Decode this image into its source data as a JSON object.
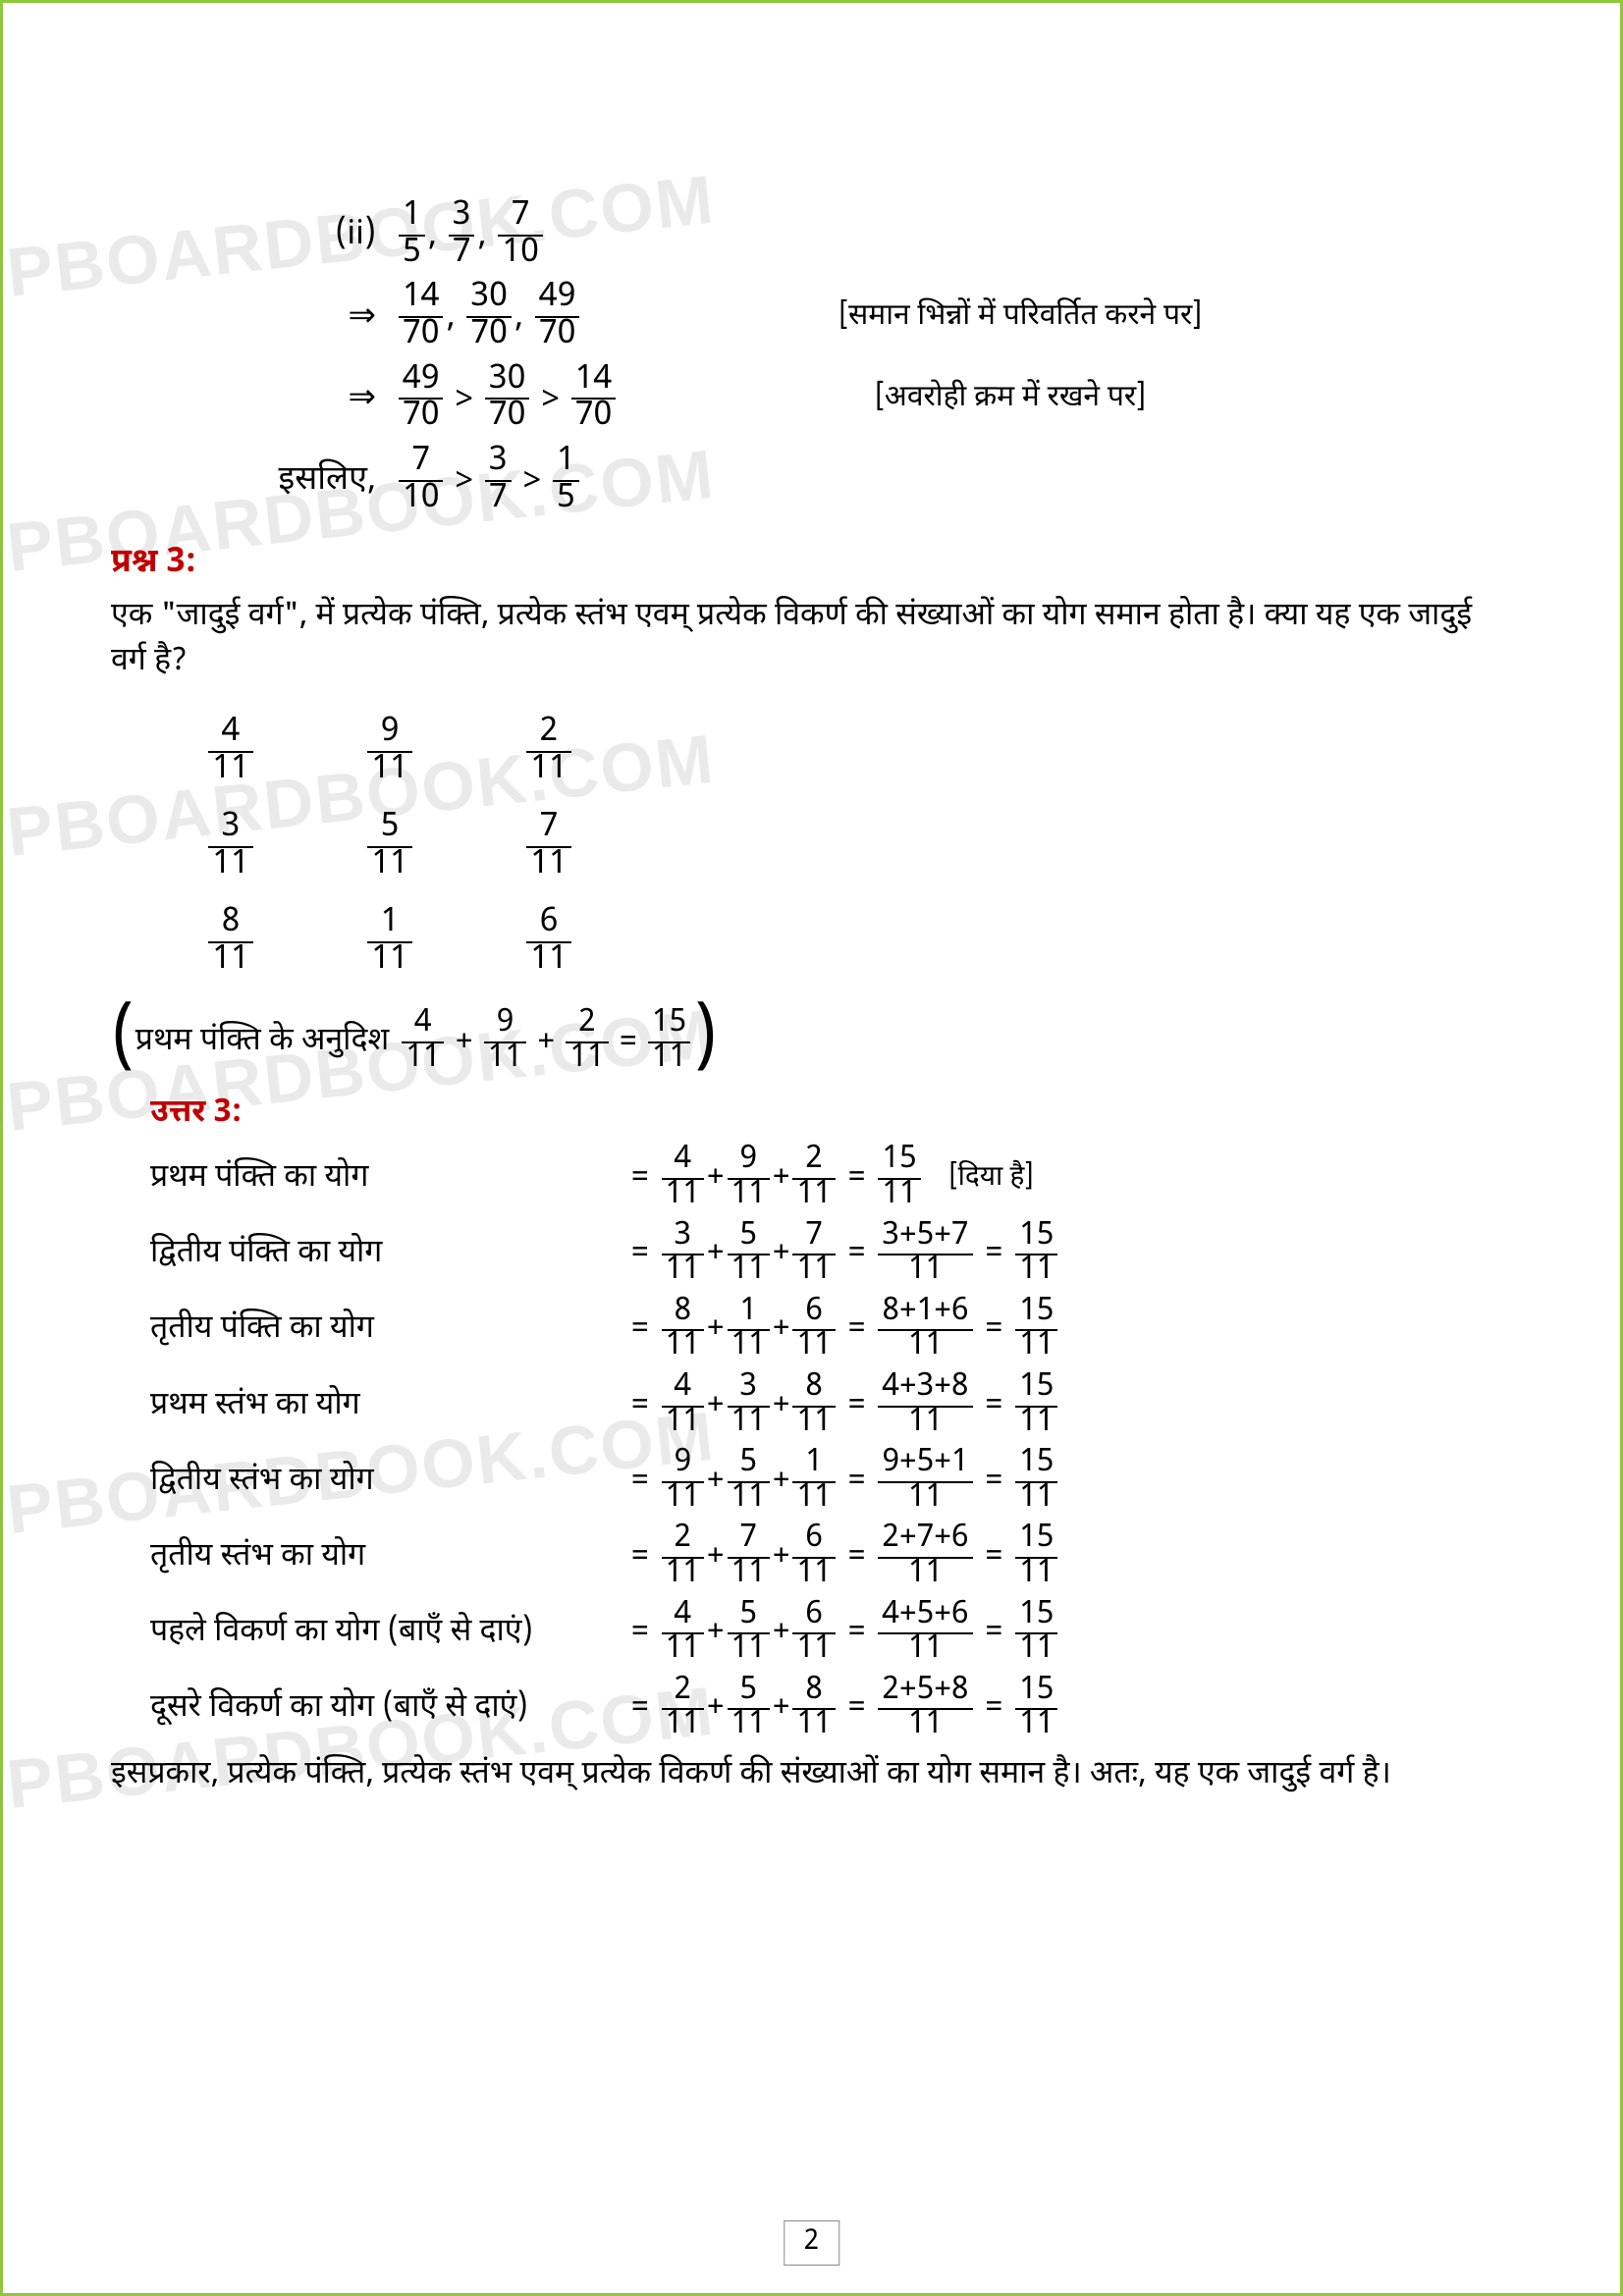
{
  "watermark_text": "UPBOARDBOOK.COM",
  "page_number": "2",
  "section_ii": {
    "marker": "(ii)",
    "original": [
      [
        "1",
        "5"
      ],
      [
        "3",
        "7"
      ],
      [
        "7",
        "10"
      ]
    ],
    "converted": [
      [
        "14",
        "70"
      ],
      [
        "30",
        "70"
      ],
      [
        "49",
        "70"
      ]
    ],
    "note_convert": "[समान भिन्नों में परिवर्तित करने पर]",
    "descending": [
      [
        "49",
        "70"
      ],
      [
        "30",
        "70"
      ],
      [
        "14",
        "70"
      ]
    ],
    "note_desc": "[अवरोही क्रम में रखने पर]",
    "therefore": "इसलिए,",
    "arrow": "⇒",
    "gt": ">",
    "comma": ",",
    "final": [
      [
        "7",
        "10"
      ],
      [
        "3",
        "7"
      ],
      [
        "1",
        "5"
      ]
    ]
  },
  "question3": {
    "title": "प्रश्न 3:",
    "text": "एक \"जादुई वर्ग\", में प्रत्येक पंक्ति, प्रत्येक स्तंभ एवम् प्रत्येक विकर्ण की संख्याओं का योग समान होता है। क्या यह एक जादुई वर्ग है?",
    "square": [
      [
        [
          "4",
          "11"
        ],
        [
          "9",
          "11"
        ],
        [
          "2",
          "11"
        ]
      ],
      [
        [
          "3",
          "11"
        ],
        [
          "5",
          "11"
        ],
        [
          "7",
          "11"
        ]
      ],
      [
        [
          "8",
          "11"
        ],
        [
          "1",
          "11"
        ],
        [
          "6",
          "11"
        ]
      ]
    ],
    "hint_prefix": "प्रथम पंक्ति के अनुदिश",
    "hint_fracs": [
      [
        "4",
        "11"
      ],
      [
        "9",
        "11"
      ],
      [
        "2",
        "11"
      ]
    ],
    "hint_result": [
      "15",
      "11"
    ],
    "plus": "+",
    "equals": "="
  },
  "answer3": {
    "title": "उत्तर 3:",
    "given": "[दिया है]",
    "rows": [
      {
        "label": "प्रथम पंक्ति का योग",
        "f": [
          [
            "4",
            "11"
          ],
          [
            "9",
            "11"
          ],
          [
            "2",
            "11"
          ]
        ],
        "mid": null,
        "res": [
          "15",
          "11"
        ],
        "given": true
      },
      {
        "label": "द्वितीय पंक्ति का योग",
        "f": [
          [
            "3",
            "11"
          ],
          [
            "5",
            "11"
          ],
          [
            "7",
            "11"
          ]
        ],
        "mid": [
          "3+5+7",
          "11"
        ],
        "res": [
          "15",
          "11"
        ]
      },
      {
        "label": "तृतीय पंक्ति का योग",
        "f": [
          [
            "8",
            "11"
          ],
          [
            "1",
            "11"
          ],
          [
            "6",
            "11"
          ]
        ],
        "mid": [
          "8+1+6",
          "11"
        ],
        "res": [
          "15",
          "11"
        ]
      },
      {
        "label": "प्रथम स्तंभ का योग",
        "f": [
          [
            "4",
            "11"
          ],
          [
            "3",
            "11"
          ],
          [
            "8",
            "11"
          ]
        ],
        "mid": [
          "4+3+8",
          "11"
        ],
        "res": [
          "15",
          "11"
        ]
      },
      {
        "label": "द्वितीय स्तंभ का योग",
        "f": [
          [
            "9",
            "11"
          ],
          [
            "5",
            "11"
          ],
          [
            "1",
            "11"
          ]
        ],
        "mid": [
          "9+5+1",
          "11"
        ],
        "res": [
          "15",
          "11"
        ]
      },
      {
        "label": "तृतीय स्तंभ का योग",
        "f": [
          [
            "2",
            "11"
          ],
          [
            "7",
            "11"
          ],
          [
            "6",
            "11"
          ]
        ],
        "mid": [
          "2+7+6",
          "11"
        ],
        "res": [
          "15",
          "11"
        ]
      },
      {
        "label": "पहले विकर्ण का योग (बाएँ से दाएं)",
        "f": [
          [
            "4",
            "11"
          ],
          [
            "5",
            "11"
          ],
          [
            "6",
            "11"
          ]
        ],
        "mid": [
          "4+5+6",
          "11"
        ],
        "res": [
          "15",
          "11"
        ]
      },
      {
        "label": "दूसरे विकर्ण का योग (बाएँ से दाएं)",
        "f": [
          [
            "2",
            "11"
          ],
          [
            "5",
            "11"
          ],
          [
            "8",
            "11"
          ]
        ],
        "mid": [
          "2+5+8",
          "11"
        ],
        "res": [
          "15",
          "11"
        ]
      }
    ],
    "conclusion": "इसप्रकार, प्रत्येक पंक्ति, प्रत्येक स्तंभ एवम् प्रत्येक विकर्ण की संख्याओं का योग समान है। अतः, यह एक जादुई वर्ग है।"
  }
}
